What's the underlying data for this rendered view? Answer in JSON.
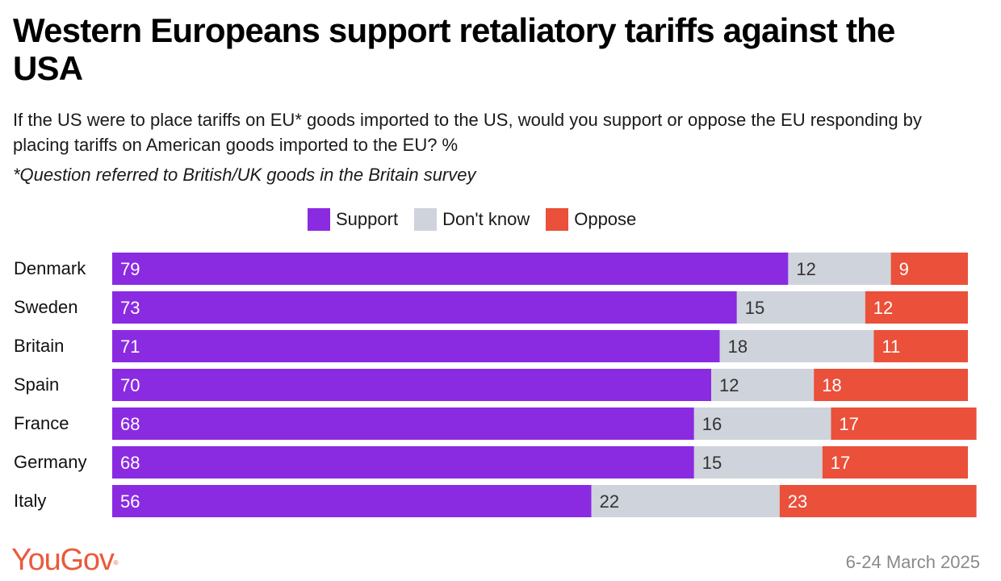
{
  "header": {
    "title": "Western Europeans support retaliatory tariffs against the USA",
    "subtitle": "If the US were to place tariffs on EU* goods imported to the US, would you support or oppose the EU responding by placing tariffs on American goods imported to the EU? %",
    "note": "*Question referred to British/UK goods in the Britain survey"
  },
  "legend": {
    "items": [
      {
        "label": "Support",
        "color": "#8a2be2"
      },
      {
        "label": "Don't know",
        "color": "#cfd3db"
      },
      {
        "label": "Oppose",
        "color": "#ea503a"
      }
    ]
  },
  "footer": {
    "brand": "YouGov",
    "date": "6-24 March 2025"
  },
  "chart_data": {
    "type": "bar",
    "orientation": "horizontal",
    "stacked": true,
    "categories": [
      "Denmark",
      "Sweden",
      "Britain",
      "Spain",
      "France",
      "Germany",
      "Italy"
    ],
    "series": [
      {
        "name": "Support",
        "color": "#8a2be2",
        "label_color": "#ffffff",
        "values": [
          79,
          73,
          71,
          70,
          68,
          68,
          56
        ]
      },
      {
        "name": "Don't know",
        "color": "#cfd3db",
        "label_color": "#333333",
        "values": [
          12,
          15,
          18,
          12,
          16,
          15,
          22
        ]
      },
      {
        "name": "Oppose",
        "color": "#ea503a",
        "label_color": "#ffffff",
        "values": [
          9,
          12,
          11,
          18,
          17,
          17,
          23
        ]
      }
    ],
    "legend_position": "top-center",
    "grid": false
  }
}
